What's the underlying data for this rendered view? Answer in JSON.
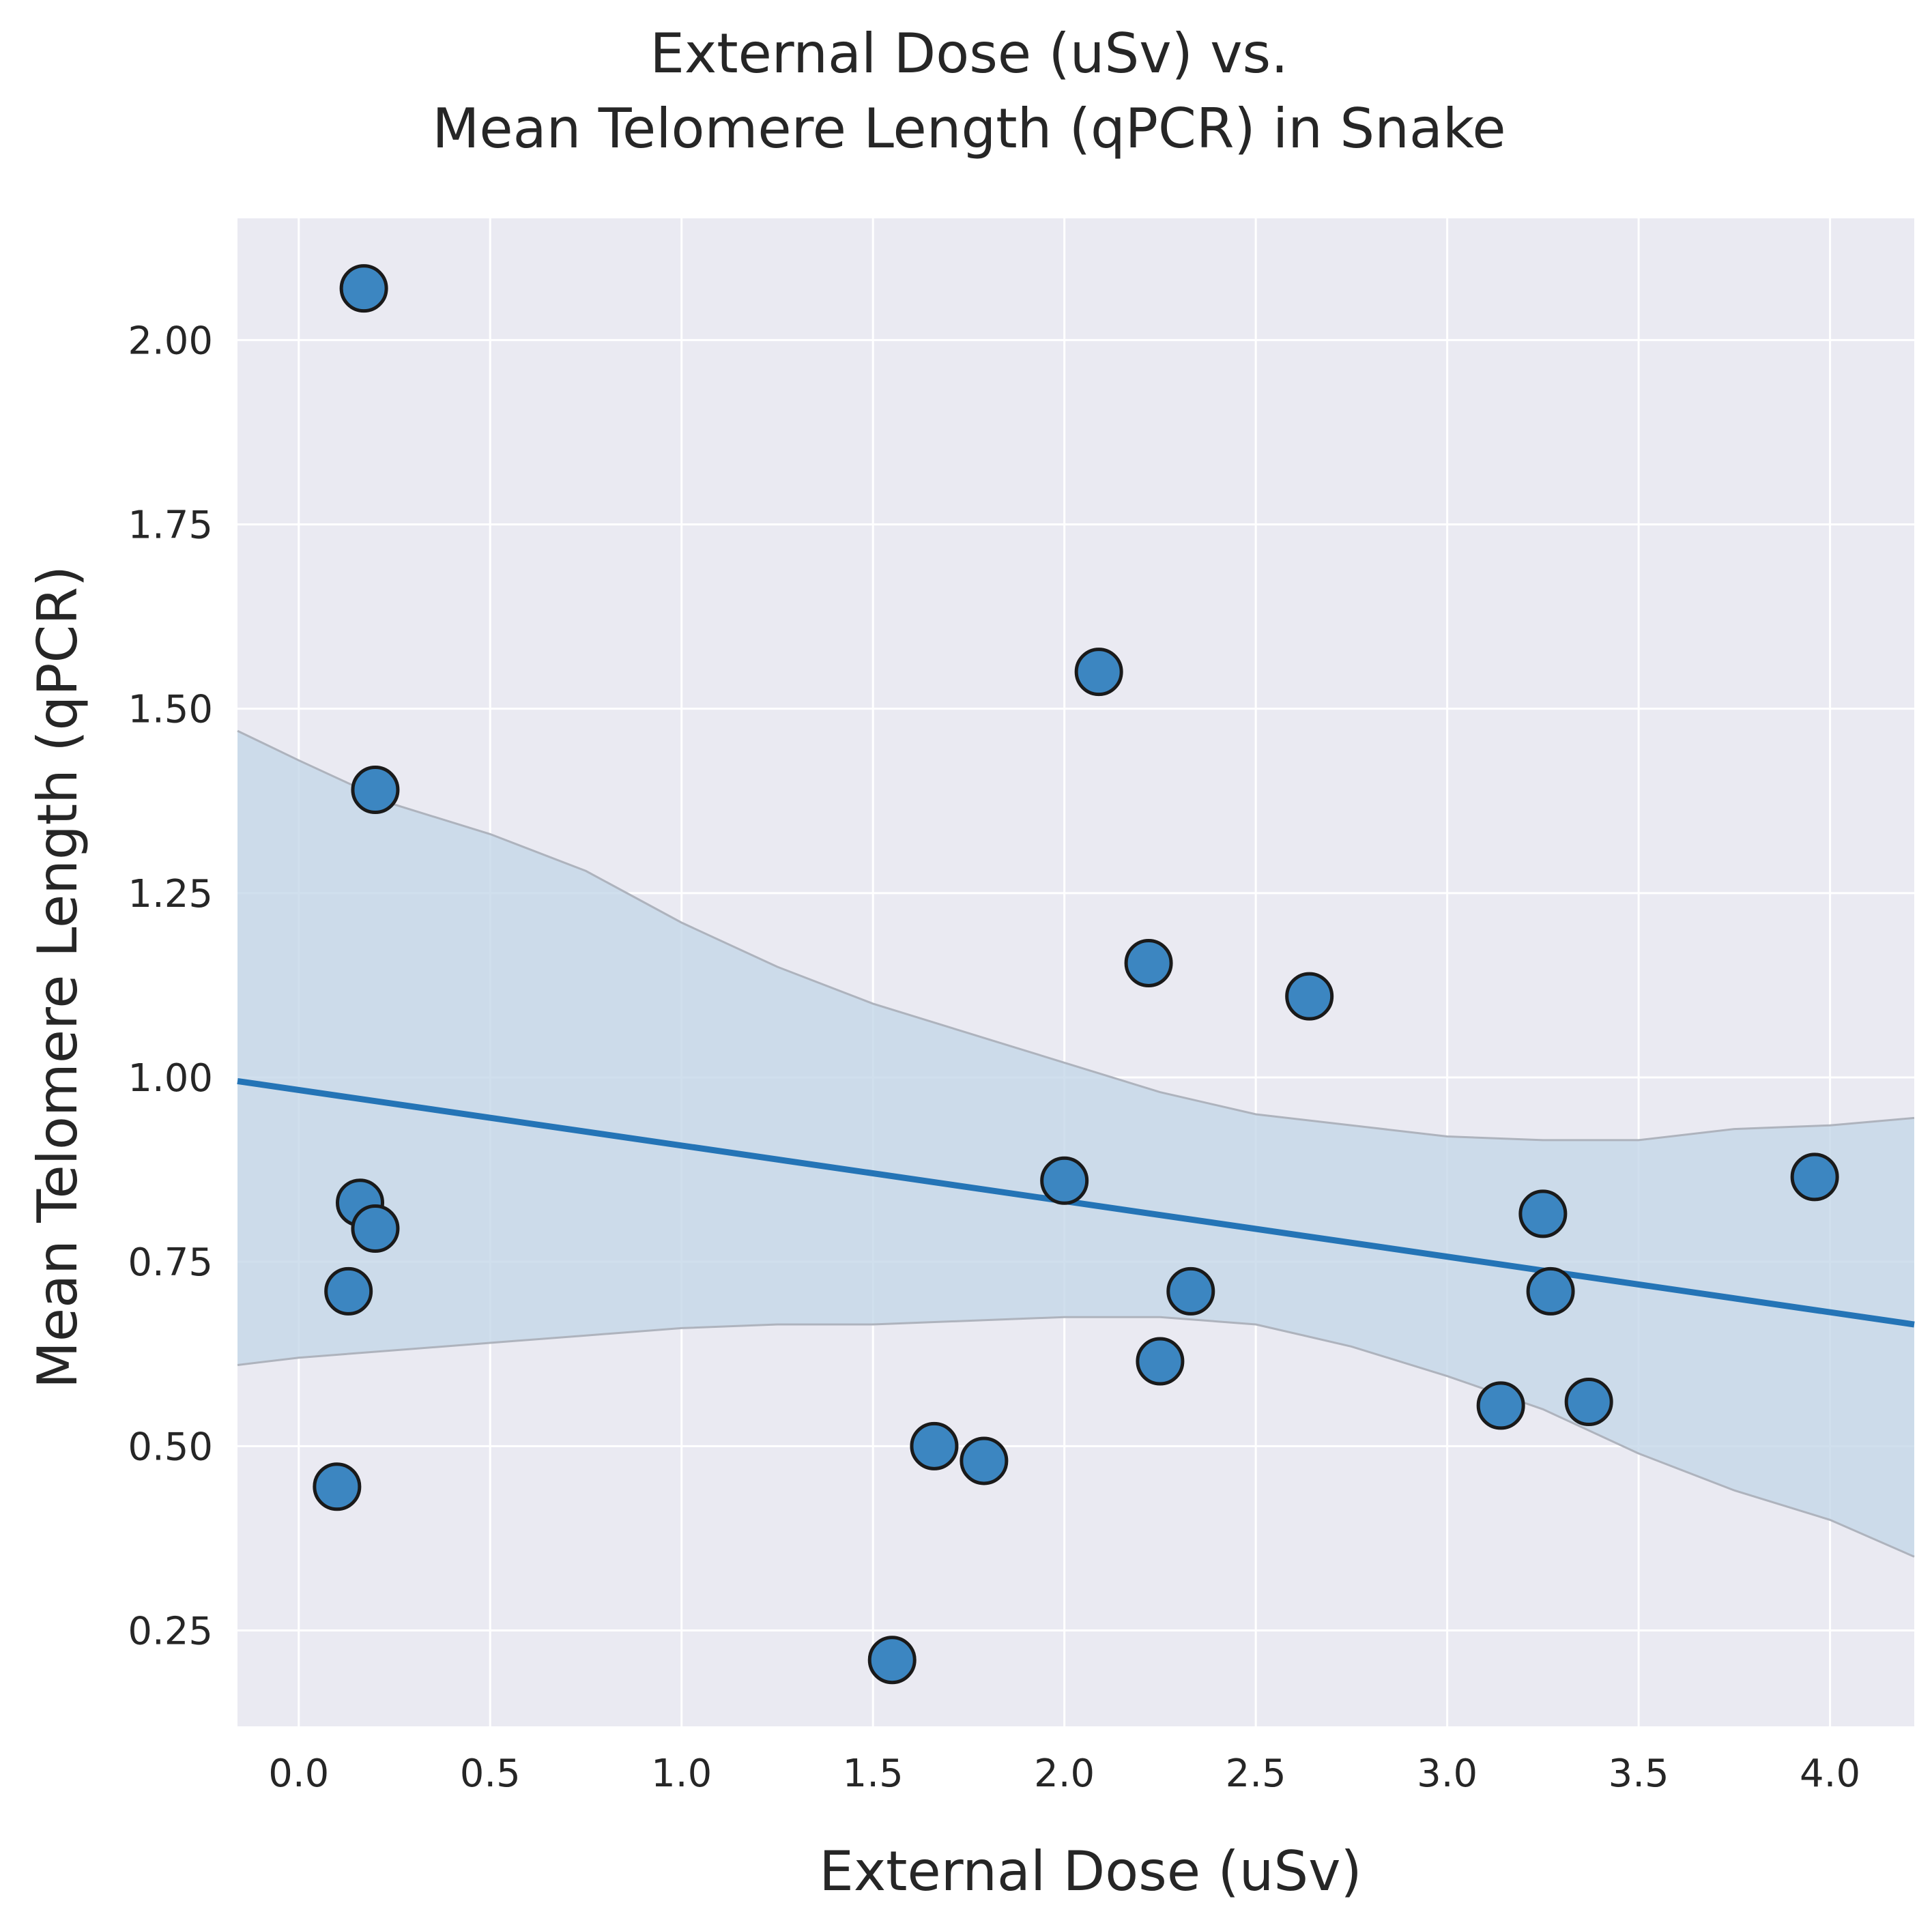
{
  "chart_data": {
    "type": "scatter",
    "title_lines": [
      "External Dose (uSv) vs.",
      "Mean Telomere Length (qPCR) in Snake"
    ],
    "xlabel": "External Dose (uSv)",
    "ylabel": "Mean Telomere Length (qPCR)",
    "xlim": [
      -0.16,
      4.22
    ],
    "ylim": [
      0.12,
      2.165
    ],
    "xticks": [
      0.0,
      0.5,
      1.0,
      1.5,
      2.0,
      2.5,
      3.0,
      3.5,
      4.0
    ],
    "xtick_labels": [
      "0.0",
      "0.5",
      "1.0",
      "1.5",
      "2.0",
      "2.5",
      "3.0",
      "3.5",
      "4.0"
    ],
    "yticks": [
      0.25,
      0.5,
      0.75,
      1.0,
      1.25,
      1.5,
      1.75,
      2.0
    ],
    "ytick_labels": [
      "0.25",
      "0.50",
      "0.75",
      "1.00",
      "1.25",
      "1.50",
      "1.75",
      "2.00"
    ],
    "grid": true,
    "points": [
      {
        "x": 0.17,
        "y": 2.07
      },
      {
        "x": 0.2,
        "y": 1.39
      },
      {
        "x": 0.16,
        "y": 0.83
      },
      {
        "x": 0.2,
        "y": 0.795
      },
      {
        "x": 0.13,
        "y": 0.71
      },
      {
        "x": 0.1,
        "y": 0.445
      },
      {
        "x": 1.55,
        "y": 0.21
      },
      {
        "x": 1.66,
        "y": 0.5
      },
      {
        "x": 1.79,
        "y": 0.48
      },
      {
        "x": 2.0,
        "y": 0.86
      },
      {
        "x": 2.09,
        "y": 1.55
      },
      {
        "x": 2.22,
        "y": 1.155
      },
      {
        "x": 2.25,
        "y": 0.615
      },
      {
        "x": 2.33,
        "y": 0.71
      },
      {
        "x": 2.64,
        "y": 1.11
      },
      {
        "x": 3.14,
        "y": 0.555
      },
      {
        "x": 3.25,
        "y": 0.815
      },
      {
        "x": 3.27,
        "y": 0.71
      },
      {
        "x": 3.37,
        "y": 0.56
      },
      {
        "x": 3.96,
        "y": 0.865
      }
    ],
    "regression_line": {
      "x": [
        -0.16,
        4.22
      ],
      "y": [
        0.995,
        0.665
      ]
    },
    "confidence_band": {
      "x": [
        -0.16,
        0.0,
        0.25,
        0.5,
        0.75,
        1.0,
        1.25,
        1.5,
        1.75,
        2.0,
        2.25,
        2.5,
        2.75,
        3.0,
        3.25,
        3.5,
        3.75,
        4.0,
        4.22
      ],
      "upper": [
        1.47,
        1.43,
        1.37,
        1.33,
        1.28,
        1.21,
        1.15,
        1.1,
        1.06,
        1.02,
        0.98,
        0.95,
        0.935,
        0.92,
        0.915,
        0.915,
        0.93,
        0.935,
        0.945
      ],
      "lower": [
        0.61,
        0.62,
        0.63,
        0.64,
        0.65,
        0.66,
        0.665,
        0.665,
        0.67,
        0.675,
        0.675,
        0.665,
        0.635,
        0.595,
        0.55,
        0.49,
        0.44,
        0.4,
        0.35
      ]
    },
    "colors": {
      "background": "#eaeaf2",
      "grid": "#ffffff",
      "point_fill": "#3c86c1",
      "point_edge": "#1a1a1a",
      "line": "#2474b6",
      "band": "#c3d6e8",
      "band_edge": "#aeb3bd",
      "text": "#262626"
    }
  }
}
